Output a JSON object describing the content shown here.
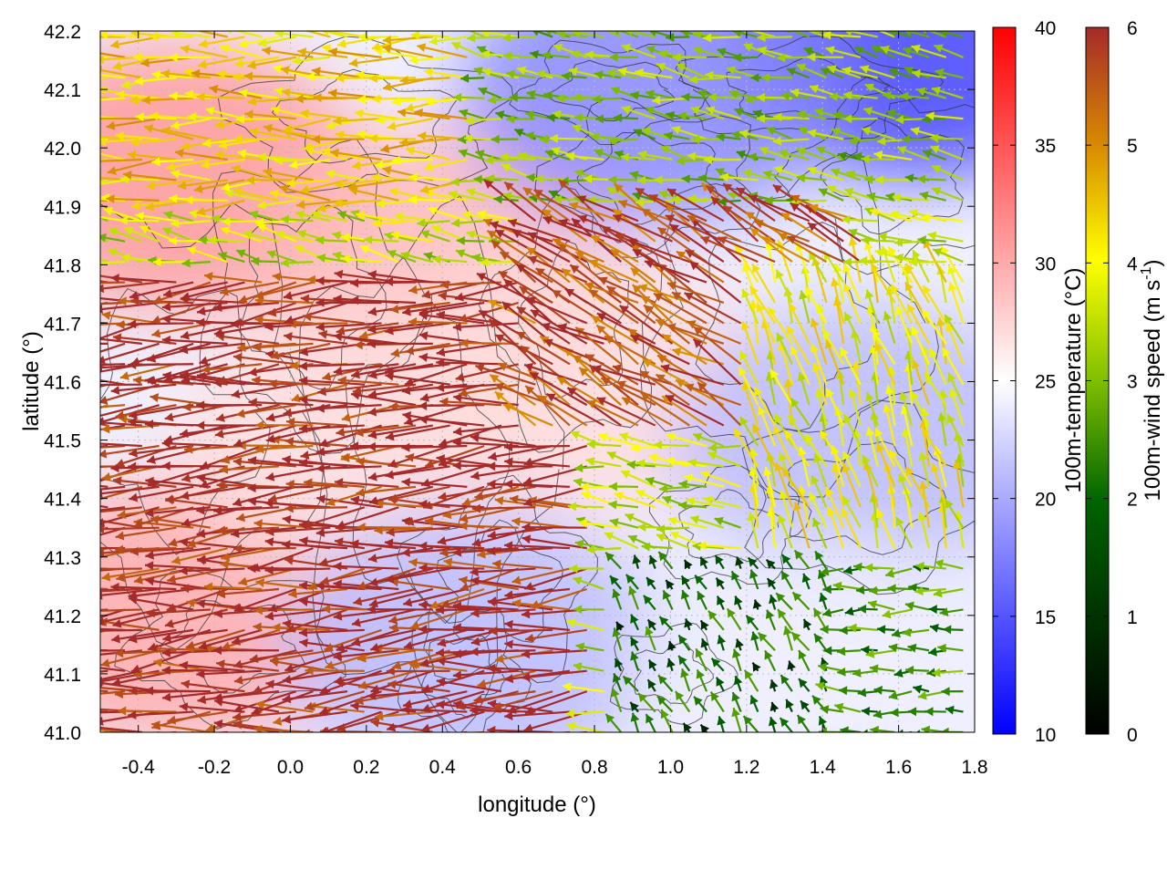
{
  "chart_data": {
    "type": "heatmap",
    "title": "",
    "xlabel": "longitude (°)",
    "ylabel": "latitude (°)",
    "xlim": [
      -0.5,
      1.8
    ],
    "ylim": [
      41.0,
      42.2
    ],
    "x_ticks": [
      -0.4,
      -0.2,
      0.0,
      0.2,
      0.4,
      0.6,
      0.8,
      1.0,
      1.2,
      1.4,
      1.6,
      1.8
    ],
    "x_tick_labels": [
      "-0.4",
      "-0.2",
      "0.0",
      "0.2",
      "0.4",
      "0.6",
      "0.8",
      "1.0",
      "1.2",
      "1.4",
      "1.6",
      "1.8"
    ],
    "y_ticks": [
      41.0,
      41.1,
      41.2,
      41.3,
      41.4,
      41.5,
      41.6,
      41.7,
      41.8,
      41.9,
      42.0,
      42.1,
      42.2
    ],
    "y_tick_labels": [
      "41.0",
      "41.1",
      "41.2",
      "41.3",
      "41.4",
      "41.5",
      "41.6",
      "41.7",
      "41.8",
      "41.9",
      "42.0",
      "42.1",
      "42.2"
    ],
    "grid": true,
    "layers": [
      "temperature shading",
      "topography contours",
      "wind vectors colored by speed"
    ],
    "colorbars": [
      {
        "label": "100m-temperature (°C)",
        "range": [
          10,
          40
        ],
        "ticks": [
          10,
          15,
          20,
          25,
          30,
          35,
          40
        ],
        "tick_labels": [
          "10",
          "15",
          "20",
          "25",
          "30",
          "35",
          "40"
        ],
        "colors": [
          "#0000ff",
          "#ffffff",
          "#ff0000"
        ]
      },
      {
        "label": "100m-wind speed (m s-1)",
        "label_main": "100m-wind speed (m s",
        "label_sup": "-1",
        "label_end": ")",
        "range": [
          0,
          6
        ],
        "ticks": [
          0,
          1,
          2,
          3,
          4,
          5,
          6
        ],
        "tick_labels": [
          "0",
          "1",
          "2",
          "3",
          "4",
          "5",
          "6"
        ],
        "colors": [
          "#000000",
          "#006400",
          "#7fbf00",
          "#ffff00",
          "#d98c00",
          "#a52a2a"
        ]
      }
    ],
    "temperature_regions": [
      {
        "name": "warm-west-high",
        "lon": -0.3,
        "lat": 41.2,
        "value": 30
      },
      {
        "name": "warm-northwest",
        "lon": -0.3,
        "lat": 41.95,
        "value": 31
      },
      {
        "name": "warm-central-north",
        "lon": 0.4,
        "lat": 41.8,
        "value": 29
      },
      {
        "name": "warm-center",
        "lon": 0.2,
        "lat": 41.5,
        "value": 27
      },
      {
        "name": "mild-center-east",
        "lon": 0.75,
        "lat": 41.6,
        "value": 27
      },
      {
        "name": "cool-east",
        "lon": 1.5,
        "lat": 41.5,
        "value": 21
      },
      {
        "name": "cool-northeast",
        "lon": 1.65,
        "lat": 42.18,
        "value": 14
      },
      {
        "name": "cool-north",
        "lon": 0.95,
        "lat": 42.1,
        "value": 18
      },
      {
        "name": "cool-south-valley",
        "lon": 0.48,
        "lat": 41.15,
        "value": 21
      },
      {
        "name": "coast-southeast",
        "lon": 1.4,
        "lat": 41.1,
        "value": 24
      }
    ],
    "wind_regimes": [
      {
        "name": "strong-westward-easterly-flow-southwest",
        "lon_range": [
          -0.5,
          0.8
        ],
        "lat_range": [
          41.0,
          41.8
        ],
        "speed": 6,
        "direction_deg_toward": 185
      },
      {
        "name": "northwest-moderate",
        "lon_range": [
          -0.5,
          0.5
        ],
        "lat_range": [
          41.9,
          42.2
        ],
        "speed": 4,
        "direction_deg_toward": 180
      },
      {
        "name": "central-east-northwestward",
        "lon_range": [
          0.6,
          1.5
        ],
        "lat_range": [
          41.5,
          42.0
        ],
        "speed": 5.5,
        "direction_deg_toward": 150
      },
      {
        "name": "north-light-mixed",
        "lon_range": [
          0.5,
          1.8
        ],
        "lat_range": [
          41.9,
          42.2
        ],
        "speed": 2.5,
        "direction_deg_toward": 170
      },
      {
        "name": "east-light-northward",
        "lon_range": [
          1.2,
          1.8
        ],
        "lat_range": [
          41.3,
          41.8
        ],
        "speed": 3.5,
        "direction_deg_toward": 110
      },
      {
        "name": "southeast-coastal-weak",
        "lon_range": [
          0.85,
          1.45
        ],
        "lat_range": [
          41.0,
          41.3
        ],
        "speed": 1.2,
        "direction_deg_toward": 120
      },
      {
        "name": "southeast-westward-weak",
        "lon_range": [
          1.45,
          1.8
        ],
        "lat_range": [
          41.0,
          41.3
        ],
        "speed": 1.8,
        "direction_deg_toward": 180
      }
    ]
  }
}
